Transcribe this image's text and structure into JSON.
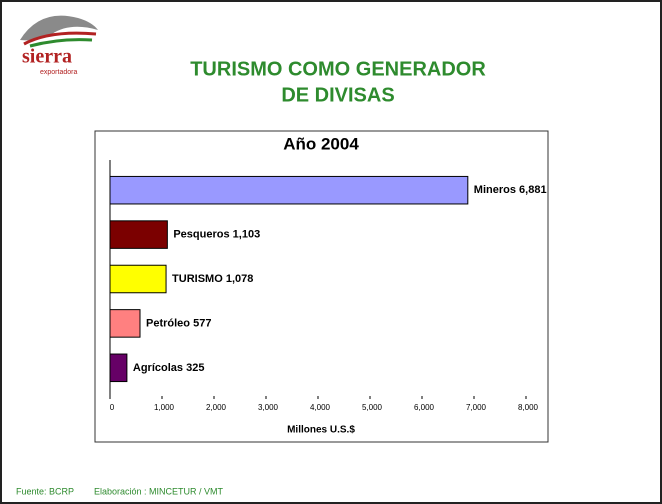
{
  "logo": {
    "name": "sierra",
    "tagline": "exportadora"
  },
  "slide_title": [
    "TURISMO COMO GENERADOR",
    "DE DIVISAS"
  ],
  "footer": {
    "source": "Fuente: BCRP",
    "credit": "Elaboración : MINCETUR / VMT"
  },
  "chart_data": {
    "type": "barh",
    "title": "Año 2004",
    "categories": [
      "Mineros",
      "Pesqueros",
      "TURISMO",
      "Petróleo",
      "Agrícolas"
    ],
    "values": [
      6881,
      1103,
      1078,
      577,
      325
    ],
    "value_labels": [
      "6,881",
      "1,103",
      "1,078",
      "577",
      "325"
    ],
    "colors": [
      "#9999ff",
      "#7b0000",
      "#ffff00",
      "#ff8080",
      "#660066"
    ],
    "xlabel": "Millones U.S.$",
    "xlim": [
      0,
      8000
    ],
    "xticks": [
      0,
      {
        "value": 1000,
        "label": "1,000"
      },
      {
        "value": 2000,
        "label": "2,000"
      },
      {
        "value": 3000,
        "label": "3,000"
      },
      {
        "value": 4000,
        "label": "4,000"
      },
      {
        "value": 5000,
        "label": "5,000"
      },
      {
        "value": 6000,
        "label": "6,000"
      },
      {
        "value": 7000,
        "label": "7,000"
      },
      {
        "value": 8000,
        "label": "8,000"
      }
    ]
  }
}
